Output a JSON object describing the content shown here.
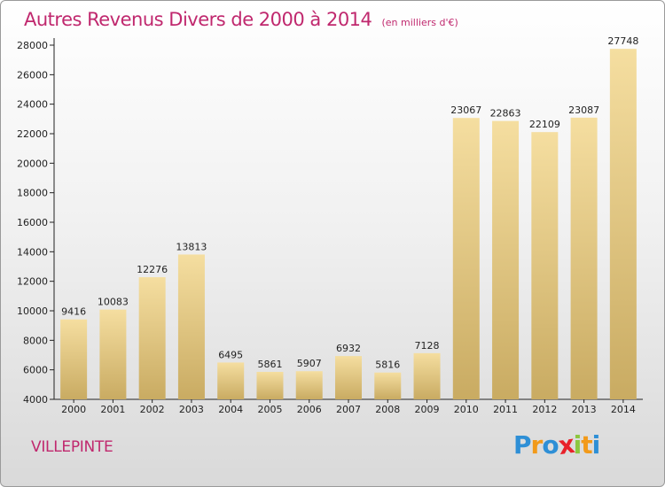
{
  "chart_data": {
    "type": "bar",
    "title": "Autres Revenus Divers de 2000 à 2014",
    "subtitle": "(en milliers d'€)",
    "categories": [
      "2000",
      "2001",
      "2002",
      "2003",
      "2004",
      "2005",
      "2006",
      "2007",
      "2008",
      "2009",
      "2010",
      "2011",
      "2012",
      "2013",
      "2014"
    ],
    "values": [
      9416,
      10083,
      12276,
      13813,
      6495,
      5861,
      5907,
      6932,
      5816,
      7128,
      23067,
      22863,
      22109,
      23087,
      27748
    ],
    "ylim": [
      4000,
      28000
    ],
    "yticks": [
      4000,
      6000,
      8000,
      10000,
      12000,
      14000,
      16000,
      18000,
      20000,
      22000,
      24000,
      26000,
      28000
    ],
    "grid": false,
    "bar_color_top": "#f5dea0",
    "bar_color_bottom": "#c9ab62"
  },
  "location": "VILLEPINTE",
  "logo": {
    "letters": [
      "P",
      "r",
      "o",
      "x",
      "i",
      "t",
      "i"
    ],
    "colors": [
      "#2e8fd6",
      "#f29a1a",
      "#2e8fd6",
      "#e8212a",
      "#8cc63f",
      "#f29a1a",
      "#2e8fd6"
    ]
  },
  "colors": {
    "accent": "#c0286e"
  }
}
